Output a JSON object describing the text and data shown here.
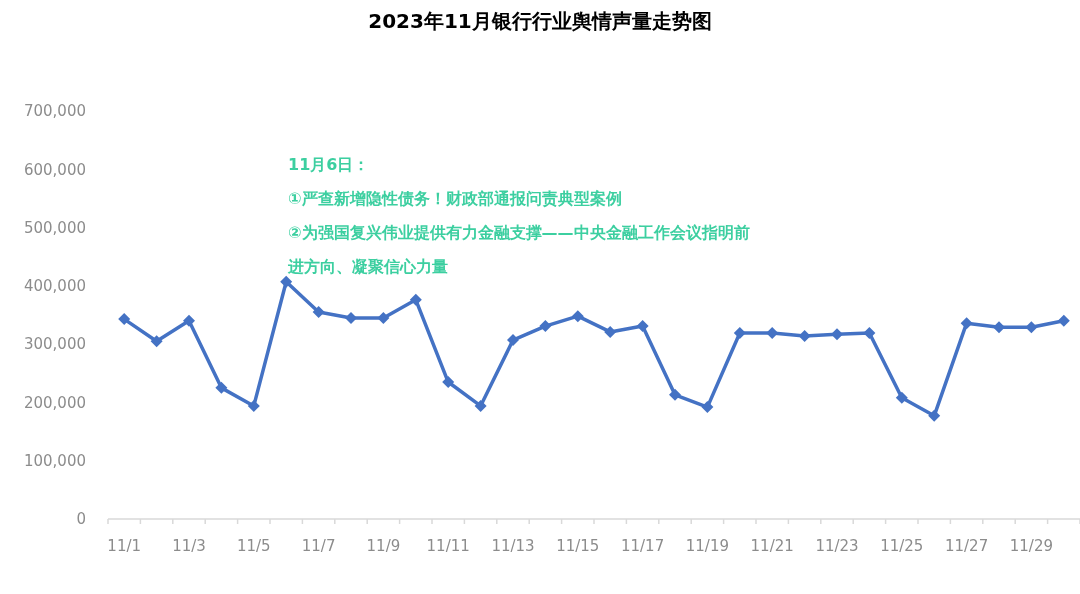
{
  "chart_data": {
    "type": "line",
    "title": "2023年11月银行行业舆情声量走势图",
    "categories": [
      "11/1",
      null,
      "11/3",
      null,
      "11/5",
      null,
      "11/7",
      null,
      "11/9",
      null,
      "11/11",
      null,
      "11/13",
      null,
      "11/15",
      null,
      "11/17",
      null,
      "11/19",
      null,
      "11/21",
      null,
      "11/23",
      null,
      "11/25",
      null,
      "11/27",
      null,
      "11/29",
      null
    ],
    "series": [
      {
        "color": "#4472c4",
        "values": [
          343000,
          305000,
          340000,
          225000,
          194000,
          407000,
          355000,
          345000,
          345000,
          376000,
          235000,
          194000,
          307000,
          331000,
          348000,
          321000,
          331000,
          213000,
          192000,
          319000,
          319000,
          314000,
          317000,
          319000,
          208000,
          177000,
          336000,
          329000,
          329000,
          340000
        ]
      }
    ],
    "ylim": [
      0,
      700000
    ],
    "yticks": [
      {
        "value": 0,
        "label": "0"
      },
      {
        "value": 100000,
        "label": "100,000"
      },
      {
        "value": 200000,
        "label": "200,000"
      },
      {
        "value": 300000,
        "label": "300,000"
      },
      {
        "value": 400000,
        "label": "400,000"
      },
      {
        "value": 500000,
        "label": "500,000"
      },
      {
        "value": 600000,
        "label": "600,000"
      },
      {
        "value": 700000,
        "label": "700,000"
      }
    ],
    "grid": false,
    "marker": "diamond",
    "line_style": "solid",
    "annotations": [
      "11月6日：",
      "①严查新增隐性债务！财政部通报问责典型案例",
      "②为强国复兴伟业提供有力金融支撑——中央金融工作会议指明前",
      "进方向、凝聚信心力量"
    ]
  }
}
